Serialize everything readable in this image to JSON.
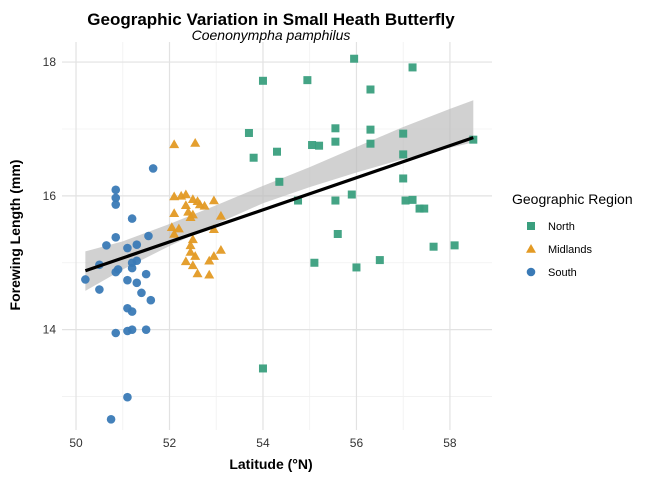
{
  "chart_data": {
    "type": "scatter",
    "title": "Geographic Variation in Small Heath Butterfly",
    "subtitle": "Coenonympha pamphilus",
    "xlabel": "Latitude (°N)",
    "ylabel": "Forewing Length (mm)",
    "xlim": [
      49.7,
      58.9
    ],
    "ylim": [
      12.5,
      18.3
    ],
    "x_ticks": [
      50,
      52,
      54,
      56,
      58
    ],
    "y_ticks": [
      14,
      16,
      18
    ],
    "grid": true,
    "legend": {
      "title": "Geographic Region",
      "position": "right"
    },
    "series": [
      {
        "name": "North",
        "color": "#3a9f7e",
        "marker": "square",
        "points": [
          [
            54.0,
            13.42
          ],
          [
            55.1,
            15.0
          ],
          [
            55.6,
            15.43
          ],
          [
            56.0,
            14.93
          ],
          [
            56.5,
            15.04
          ],
          [
            57.65,
            15.24
          ],
          [
            58.1,
            15.26
          ],
          [
            54.75,
            15.93
          ],
          [
            55.55,
            15.93
          ],
          [
            55.9,
            16.02
          ],
          [
            54.35,
            16.21
          ],
          [
            57.0,
            16.26
          ],
          [
            57.05,
            15.93
          ],
          [
            57.2,
            15.94
          ],
          [
            57.35,
            15.81
          ],
          [
            57.45,
            15.81
          ],
          [
            53.8,
            16.57
          ],
          [
            54.3,
            16.66
          ],
          [
            57.0,
            16.62
          ],
          [
            55.05,
            16.76
          ],
          [
            55.2,
            16.75
          ],
          [
            55.55,
            16.81
          ],
          [
            56.3,
            16.78
          ],
          [
            58.5,
            16.84
          ],
          [
            53.7,
            16.94
          ],
          [
            55.55,
            17.01
          ],
          [
            56.3,
            16.99
          ],
          [
            57.0,
            16.93
          ],
          [
            56.3,
            17.59
          ],
          [
            54.0,
            17.72
          ],
          [
            54.95,
            17.73
          ],
          [
            57.2,
            17.92
          ],
          [
            55.95,
            18.05
          ]
        ]
      },
      {
        "name": "Midlands",
        "color": "#e39a24",
        "marker": "triangle",
        "points": [
          [
            52.1,
            16.77
          ],
          [
            52.55,
            16.79
          ],
          [
            52.1,
            15.99
          ],
          [
            52.25,
            16.0
          ],
          [
            52.35,
            16.02
          ],
          [
            52.5,
            15.95
          ],
          [
            52.6,
            15.92
          ],
          [
            52.35,
            15.86
          ],
          [
            52.65,
            15.87
          ],
          [
            52.75,
            15.85
          ],
          [
            52.95,
            15.93
          ],
          [
            52.1,
            15.74
          ],
          [
            52.4,
            15.76
          ],
          [
            52.5,
            15.72
          ],
          [
            52.45,
            15.68
          ],
          [
            53.1,
            15.7
          ],
          [
            52.05,
            15.53
          ],
          [
            52.2,
            15.51
          ],
          [
            52.95,
            15.5
          ],
          [
            52.1,
            15.43
          ],
          [
            52.5,
            15.35
          ],
          [
            52.45,
            15.26
          ],
          [
            52.45,
            15.16
          ],
          [
            52.85,
            15.03
          ],
          [
            52.95,
            15.1
          ],
          [
            53.1,
            15.19
          ],
          [
            52.35,
            15.02
          ],
          [
            52.5,
            14.96
          ],
          [
            52.6,
            14.84
          ],
          [
            52.85,
            14.82
          ],
          [
            52.55,
            15.1
          ]
        ]
      },
      {
        "name": "South",
        "color": "#3a7ab6",
        "marker": "circle",
        "points": [
          [
            50.75,
            12.66
          ],
          [
            51.1,
            12.99
          ],
          [
            50.85,
            13.95
          ],
          [
            51.1,
            13.98
          ],
          [
            51.2,
            14.0
          ],
          [
            51.5,
            14.0
          ],
          [
            51.1,
            14.32
          ],
          [
            51.2,
            14.27
          ],
          [
            51.4,
            14.55
          ],
          [
            51.6,
            14.44
          ],
          [
            50.5,
            14.6
          ],
          [
            51.3,
            14.7
          ],
          [
            51.1,
            14.74
          ],
          [
            50.2,
            14.75
          ],
          [
            50.85,
            14.86
          ],
          [
            50.9,
            14.9
          ],
          [
            51.5,
            14.83
          ],
          [
            51.2,
            14.92
          ],
          [
            51.2,
            15.0
          ],
          [
            50.5,
            14.97
          ],
          [
            51.3,
            15.03
          ],
          [
            50.65,
            15.26
          ],
          [
            51.1,
            15.22
          ],
          [
            51.3,
            15.27
          ],
          [
            51.55,
            15.4
          ],
          [
            50.85,
            15.38
          ],
          [
            51.2,
            15.66
          ],
          [
            50.85,
            15.87
          ],
          [
            50.85,
            15.97
          ],
          [
            50.85,
            16.09
          ],
          [
            51.65,
            16.41
          ]
        ]
      }
    ],
    "trend_line": {
      "color": "#000000",
      "start": [
        50.2,
        14.88
      ],
      "end": [
        58.5,
        16.87
      ],
      "ci_band": [
        [
          50.2,
          14.58,
          15.17
        ],
        [
          51.0,
          14.9,
          15.32
        ],
        [
          52.0,
          15.25,
          15.58
        ],
        [
          53.0,
          15.58,
          15.86
        ],
        [
          54.0,
          15.89,
          16.15
        ],
        [
          55.0,
          16.13,
          16.43
        ],
        [
          56.0,
          16.35,
          16.73
        ],
        [
          57.0,
          16.55,
          17.03
        ],
        [
          58.0,
          16.72,
          17.3
        ],
        [
          58.5,
          16.8,
          17.43
        ]
      ]
    }
  }
}
